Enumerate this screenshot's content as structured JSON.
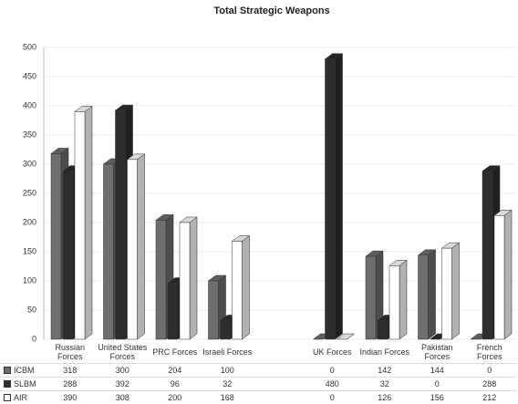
{
  "chart_data": {
    "type": "bar",
    "title": "Total Strategic Weapons",
    "categories": [
      "Russian Forces",
      "United States Forces",
      "PRC Forces",
      "Israeli Forces",
      null,
      "UK Forces",
      "Indian Forces",
      "Pakistan Forces",
      "French Forces"
    ],
    "series": [
      {
        "name": "ICBM",
        "color": "#6e6e6e",
        "values": [
          318,
          300,
          204,
          100,
          null,
          0,
          142,
          144,
          0
        ]
      },
      {
        "name": "SLBM",
        "color": "#2e2e2e",
        "values": [
          288,
          392,
          96,
          32,
          null,
          480,
          32,
          0,
          288
        ]
      },
      {
        "name": "AIR",
        "color": "#ffffff",
        "values": [
          390,
          308,
          200,
          168,
          null,
          0,
          126,
          156,
          212
        ]
      }
    ],
    "ylim": [
      0,
      500
    ],
    "yticks": [
      0,
      50,
      100,
      150,
      200,
      250,
      300,
      350,
      400,
      450,
      500
    ],
    "grid": true
  }
}
